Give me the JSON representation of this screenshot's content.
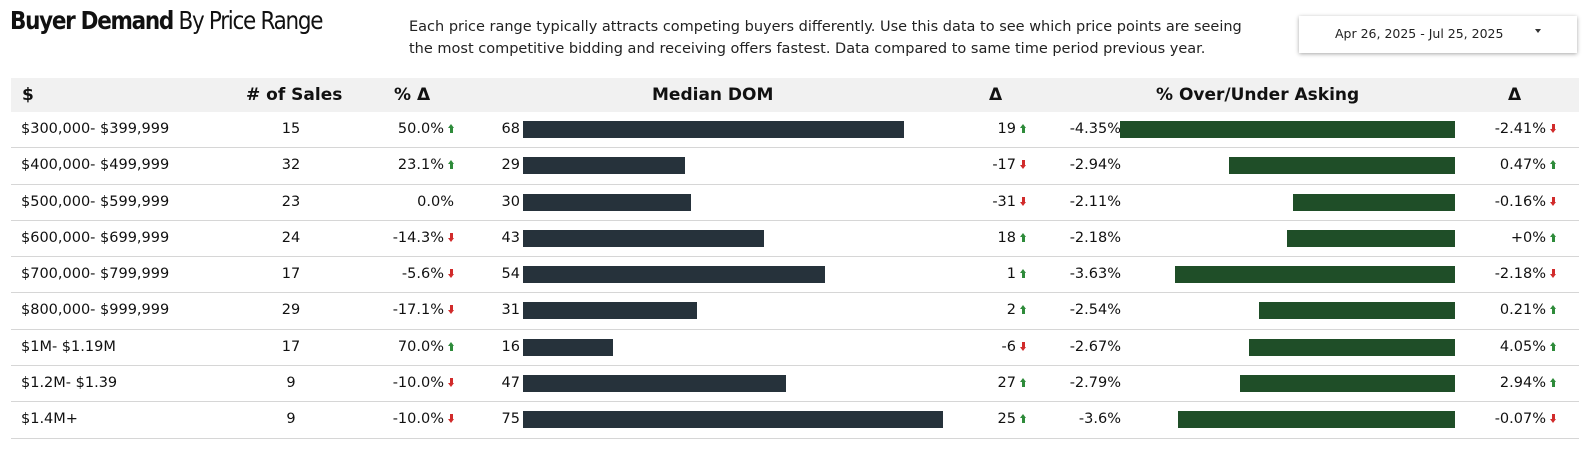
{
  "title": {
    "bold": "Buyer Demand",
    "rest": "By Price Range"
  },
  "description": "Each price range typically attracts competing buyers differently.  Use this data to see which price points are seeing the most competitive bidding and receiving offers fastest.  Data compared to same time period previous year.",
  "date_range": {
    "label": "Apr 26, 2025 - Jul 25, 2025",
    "icon": "caret-down-icon"
  },
  "colors": {
    "dom_bar": "#26323b",
    "over_bar": "#1f4e28",
    "up_arrow": "#2e8b3a",
    "down_arrow": "#d12b2b",
    "header_bg": "#f1f1f1"
  },
  "headers": {
    "range": "$",
    "sales": "# of Sales",
    "pct_change": "% Δ",
    "median_dom": "Median DOM",
    "dom_delta": "Δ",
    "over_under": "% Over/Under Asking",
    "over_delta": "Δ"
  },
  "chart_data": {
    "type": "table",
    "dom_max": 75,
    "over_max": 4.35,
    "rows": [
      {
        "range": "$300,000- $399,999",
        "sales": "15",
        "pct_change": "50.0%",
        "pct_dir": "up",
        "dom": 68,
        "dom_label": "68",
        "dom_delta": "19",
        "dom_dir": "up",
        "over": -4.35,
        "over_label": "-4.35%",
        "over_delta": "-2.41%",
        "over_dir": "down"
      },
      {
        "range": "$400,000- $499,999",
        "sales": "32",
        "pct_change": "23.1%",
        "pct_dir": "up",
        "dom": 29,
        "dom_label": "29",
        "dom_delta": "-17",
        "dom_dir": "down",
        "over": -2.94,
        "over_label": "-2.94%",
        "over_delta": "0.47%",
        "over_dir": "up"
      },
      {
        "range": "$500,000- $599,999",
        "sales": "23",
        "pct_change": "0.0%",
        "pct_dir": "",
        "dom": 30,
        "dom_label": "30",
        "dom_delta": "-31",
        "dom_dir": "down",
        "over": -2.11,
        "over_label": "-2.11%",
        "over_delta": "-0.16%",
        "over_dir": "down"
      },
      {
        "range": "$600,000- $699,999",
        "sales": "24",
        "pct_change": "-14.3%",
        "pct_dir": "down",
        "dom": 43,
        "dom_label": "43",
        "dom_delta": "18",
        "dom_dir": "up",
        "over": -2.18,
        "over_label": "-2.18%",
        "over_delta": "+0%",
        "over_dir": "up"
      },
      {
        "range": "$700,000- $799,999",
        "sales": "17",
        "pct_change": "-5.6%",
        "pct_dir": "down",
        "dom": 54,
        "dom_label": "54",
        "dom_delta": "1",
        "dom_dir": "up",
        "over": -3.63,
        "over_label": "-3.63%",
        "over_delta": "-2.18%",
        "over_dir": "down"
      },
      {
        "range": "$800,000- $999,999",
        "sales": "29",
        "pct_change": "-17.1%",
        "pct_dir": "down",
        "dom": 31,
        "dom_label": "31",
        "dom_delta": "2",
        "dom_dir": "up",
        "over": -2.54,
        "over_label": "-2.54%",
        "over_delta": "0.21%",
        "over_dir": "up"
      },
      {
        "range": "$1M- $1.19M",
        "sales": "17",
        "pct_change": "70.0%",
        "pct_dir": "up",
        "dom": 16,
        "dom_label": "16",
        "dom_delta": "-6",
        "dom_dir": "down",
        "over": -2.67,
        "over_label": "-2.67%",
        "over_delta": "4.05%",
        "over_dir": "up"
      },
      {
        "range": "$1.2M- $1.39",
        "sales": "9",
        "pct_change": "-10.0%",
        "pct_dir": "down",
        "dom": 47,
        "dom_label": "47",
        "dom_delta": "27",
        "dom_dir": "up",
        "over": -2.79,
        "over_label": "-2.79%",
        "over_delta": "2.94%",
        "over_dir": "up"
      },
      {
        "range": "$1.4M+",
        "sales": "9",
        "pct_change": "-10.0%",
        "pct_dir": "down",
        "dom": 75,
        "dom_label": "75",
        "dom_delta": "25",
        "dom_dir": "up",
        "over": -3.6,
        "over_label": "-3.6%",
        "over_delta": "-0.07%",
        "over_dir": "down"
      }
    ]
  }
}
